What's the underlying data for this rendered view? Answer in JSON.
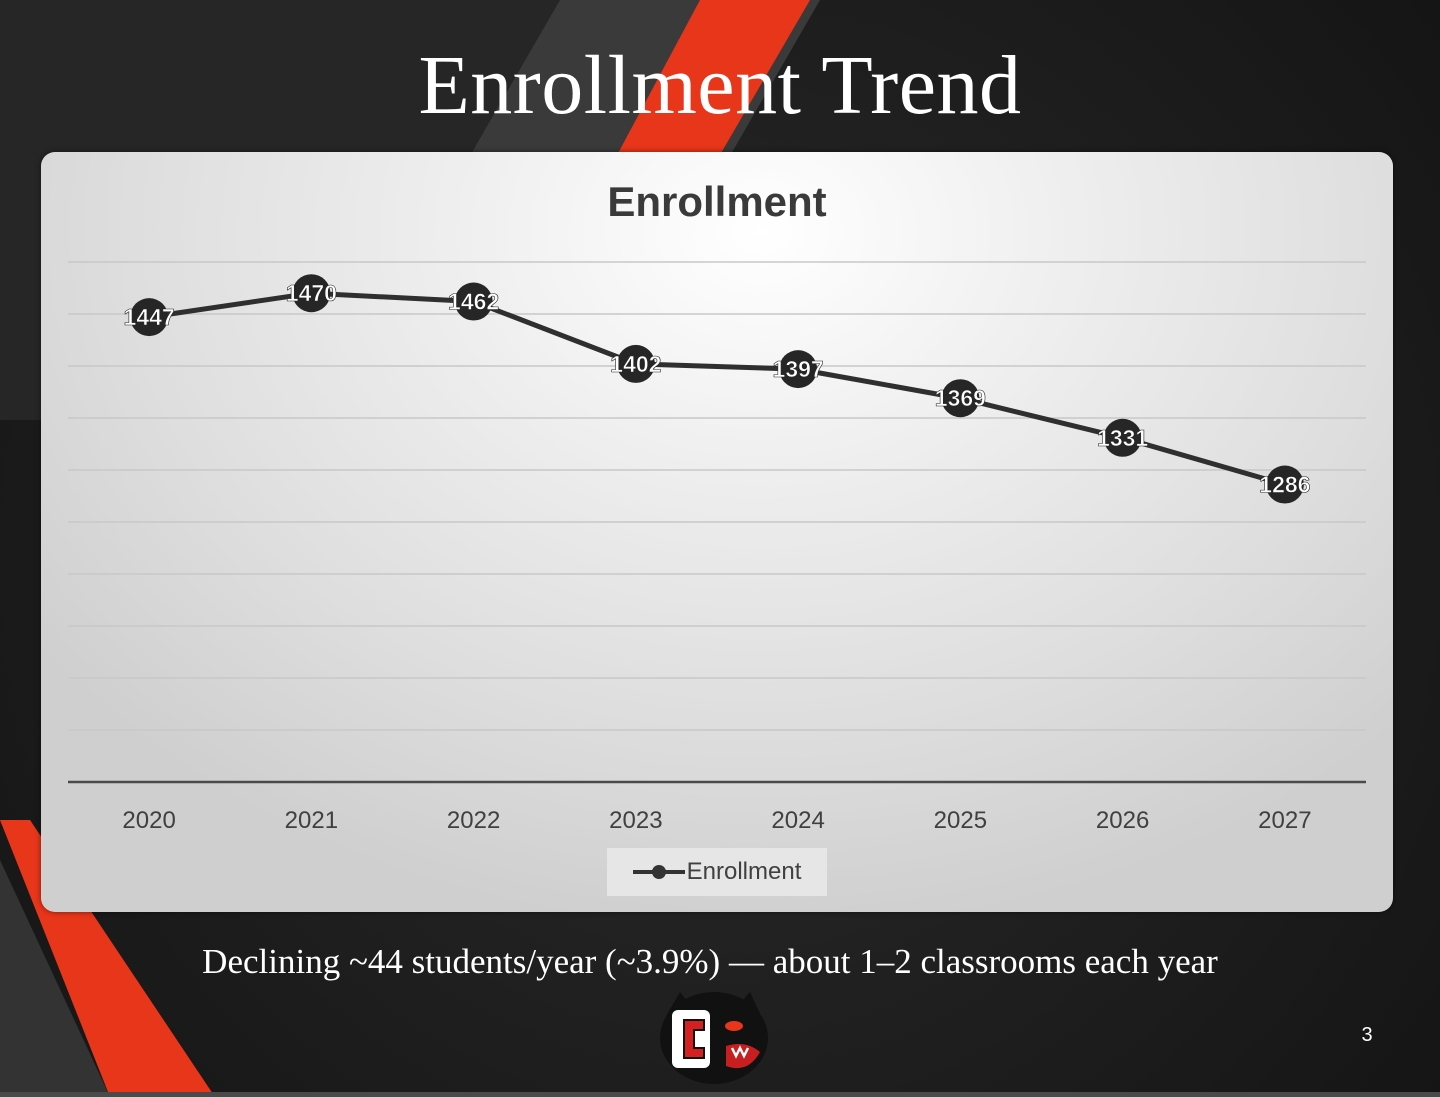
{
  "slide": {
    "title": "Enrollment Trend",
    "caption": "Declining ~44 students/year (~3.9%) — about 1–2 classrooms each year",
    "page_number": "3",
    "logo": "panther-head-letter-c-logo"
  },
  "colors": {
    "background": "#1c1c1c",
    "accent_stripe": "#e8361a",
    "line": "#2f2f2f",
    "panel": "#e4e4e4"
  },
  "chart_data": {
    "type": "line",
    "title": "Enrollment",
    "categories": [
      "2020",
      "2021",
      "2022",
      "2023",
      "2024",
      "2025",
      "2026",
      "2027"
    ],
    "series": [
      {
        "name": "Enrollment",
        "values": [
          1447,
          1470,
          1462,
          1402,
          1397,
          1369,
          1331,
          1286
        ]
      }
    ],
    "data_labels": [
      "1447",
      "1470",
      "1462",
      "1402",
      "1397",
      "1369",
      "1331",
      "1286"
    ],
    "ylim": [
      1000,
      1500
    ],
    "y_gridlines": [
      1050,
      1100,
      1150,
      1200,
      1250,
      1300,
      1350,
      1400,
      1450,
      1500
    ],
    "y_tick_labels_shown": false,
    "grid": true,
    "legend": "bottom",
    "marker": "circle"
  }
}
